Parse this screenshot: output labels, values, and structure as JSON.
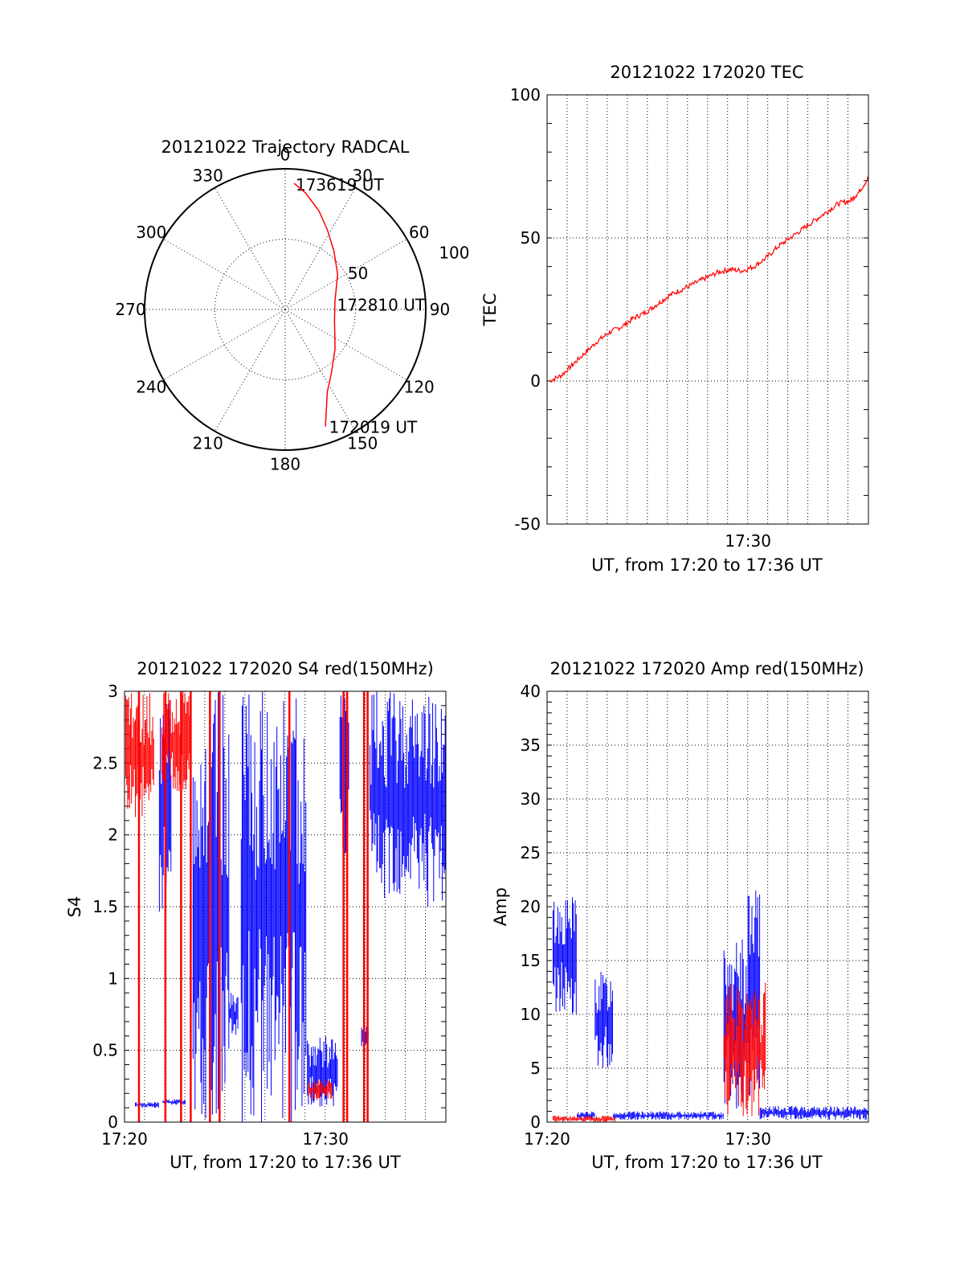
{
  "chart_data": [
    {
      "type": "polar",
      "title": "20121022 Trajectory RADCAL",
      "angle_labels": [
        "0",
        "30",
        "60",
        "90",
        "120",
        "150",
        "180",
        "210",
        "240",
        "270",
        "300",
        "330"
      ],
      "radial_ticks": [
        50,
        100
      ],
      "r_max": 100,
      "trajectory": {
        "color": "#ff0000",
        "points": [
          {
            "az": 161,
            "r": 88
          },
          {
            "az": 158,
            "r": 78
          },
          {
            "az": 153,
            "r": 66
          },
          {
            "az": 143,
            "r": 55
          },
          {
            "az": 128,
            "r": 45
          },
          {
            "az": 103,
            "r": 36
          },
          {
            "az": 80,
            "r": 36
          },
          {
            "az": 56,
            "r": 45
          },
          {
            "az": 40,
            "r": 54
          },
          {
            "az": 28,
            "r": 64
          },
          {
            "az": 19,
            "r": 74
          },
          {
            "az": 10,
            "r": 84
          },
          {
            "az": 4,
            "r": 90
          }
        ]
      },
      "annotations": [
        {
          "text": "173619 UT",
          "az": 4,
          "r": 90
        },
        {
          "text": "172810 UT",
          "az": 83,
          "r": 36
        },
        {
          "text": "172019 UT",
          "az": 160,
          "r": 88
        }
      ]
    },
    {
      "type": "line",
      "title": "20121022 172020 TEC",
      "xlabel": "UT, from 17:20 to 17:36 UT",
      "ylabel": "TEC",
      "xlim": [
        17.333,
        17.6
      ],
      "ylim": [
        -50,
        100
      ],
      "yticks": [
        -50,
        0,
        50,
        100
      ],
      "xticks": [
        {
          "v": 17.5,
          "label": "17:30"
        }
      ],
      "series": [
        {
          "color": "#ff0000",
          "points": [
            [
              17.335,
              0
            ],
            [
              17.345,
              2
            ],
            [
              17.355,
              6
            ],
            [
              17.365,
              10
            ],
            [
              17.375,
              14
            ],
            [
              17.385,
              17
            ],
            [
              17.395,
              19
            ],
            [
              17.405,
              22
            ],
            [
              17.415,
              24
            ],
            [
              17.425,
              27
            ],
            [
              17.435,
              30
            ],
            [
              17.445,
              32
            ],
            [
              17.455,
              34
            ],
            [
              17.465,
              36
            ],
            [
              17.475,
              38
            ],
            [
              17.485,
              39
            ],
            [
              17.495,
              38.5
            ],
            [
              17.505,
              40
            ],
            [
              17.515,
              43
            ],
            [
              17.525,
              47
            ],
            [
              17.535,
              50
            ],
            [
              17.545,
              53
            ],
            [
              17.555,
              56
            ],
            [
              17.565,
              59
            ],
            [
              17.575,
              62
            ],
            [
              17.585,
              63
            ],
            [
              17.592,
              66
            ],
            [
              17.6,
              71
            ]
          ]
        }
      ]
    },
    {
      "type": "line",
      "title": "20121022 172020 S4 red(150MHz)",
      "xlabel": "UT, from 17:20 to 17:36 UT",
      "ylabel": "S4",
      "xlim": [
        17.333,
        17.6
      ],
      "ylim": [
        0,
        3
      ],
      "yticks": [
        0,
        0.5,
        1,
        1.5,
        2,
        2.5,
        3
      ],
      "xticks": [
        {
          "v": 17.333,
          "label": "17:20"
        },
        {
          "v": 17.5,
          "label": "17:30"
        }
      ],
      "series": [
        {
          "color": "#0000ff",
          "segments": [
            {
              "x0": 17.342,
              "x1": 17.362,
              "lo": 0.1,
              "hi": 0.14
            },
            {
              "x0": 17.362,
              "x1": 17.372,
              "lo": 1.4,
              "hi": 3.0
            },
            {
              "x0": 17.365,
              "x1": 17.384,
              "lo": 0.12,
              "hi": 0.16
            },
            {
              "x0": 17.39,
              "x1": 17.42,
              "lo": 0,
              "hi": 3.0
            },
            {
              "x0": 17.42,
              "x1": 17.428,
              "lo": 0.6,
              "hi": 0.9
            },
            {
              "x0": 17.43,
              "x1": 17.484,
              "lo": 0,
              "hi": 3.0
            },
            {
              "x0": 17.485,
              "x1": 17.51,
              "lo": 0.1,
              "hi": 0.6
            },
            {
              "x0": 17.512,
              "x1": 17.52,
              "lo": 1.8,
              "hi": 3.0
            },
            {
              "x0": 17.53,
              "x1": 17.536,
              "lo": 0.5,
              "hi": 0.7
            },
            {
              "x0": 17.537,
              "x1": 17.6,
              "lo": 1.5,
              "hi": 3.0
            }
          ]
        },
        {
          "color": "#ff0000",
          "segments": [
            {
              "x0": 17.334,
              "x1": 17.358,
              "lo": 2.1,
              "hi": 3.0
            },
            {
              "x0": 17.364,
              "x1": 17.388,
              "lo": 2.3,
              "hi": 3.0
            },
            {
              "x0": 17.486,
              "x1": 17.506,
              "lo": 0.15,
              "hi": 0.3
            }
          ],
          "spikes": [
            17.345,
            17.367,
            17.38,
            17.388,
            17.404,
            17.412,
            17.47,
            17.515,
            17.518,
            17.532,
            17.535
          ]
        }
      ]
    },
    {
      "type": "line",
      "title": "20121022 172020 Amp red(150MHz)",
      "xlabel": "UT, from 17:20 to 17:36 UT",
      "ylabel": "Amp",
      "xlim": [
        17.333,
        17.6
      ],
      "ylim": [
        0,
        40
      ],
      "yticks": [
        0,
        5,
        10,
        15,
        20,
        25,
        30,
        35,
        40
      ],
      "xticks": [
        {
          "v": 17.333,
          "label": "17:20"
        },
        {
          "v": 17.5,
          "label": "17:30"
        }
      ],
      "series": [
        {
          "color": "#0000ff",
          "segments": [
            {
              "x0": 17.338,
              "x1": 17.358,
              "lo": 10,
              "hi": 21
            },
            {
              "x0": 17.358,
              "x1": 17.373,
              "lo": 0.2,
              "hi": 1
            },
            {
              "x0": 17.373,
              "x1": 17.388,
              "lo": 5,
              "hi": 14
            },
            {
              "x0": 17.388,
              "x1": 17.48,
              "lo": 0.2,
              "hi": 1
            },
            {
              "x0": 17.48,
              "x1": 17.5,
              "lo": 1,
              "hi": 17
            },
            {
              "x0": 17.5,
              "x1": 17.51,
              "lo": 2,
              "hi": 22
            },
            {
              "x0": 17.51,
              "x1": 17.6,
              "lo": 0.2,
              "hi": 1.5
            }
          ]
        },
        {
          "color": "#ff0000",
          "segments": [
            {
              "x0": 17.338,
              "x1": 17.39,
              "lo": 0,
              "hi": 0.6
            },
            {
              "x0": 17.48,
              "x1": 17.515,
              "lo": 0.5,
              "hi": 13
            }
          ]
        }
      ]
    }
  ]
}
